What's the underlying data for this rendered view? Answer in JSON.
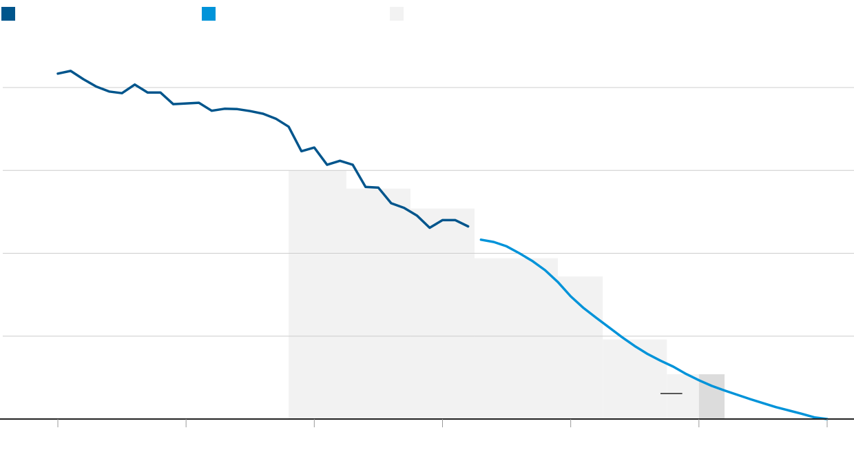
{
  "colors": {
    "historical": "#00558c",
    "projected": "#0093d9",
    "band": "#f2f2f2",
    "band_highlight": "#dcdcdc",
    "grid": "#cccccc",
    "axis": "#222222"
  },
  "chart_data": {
    "type": "line",
    "title": "",
    "xlabel": "",
    "ylabel": "",
    "grid": true,
    "legend_position": "top-left",
    "xlim": [
      1990,
      2050
    ],
    "ylim": [
      0,
      100
    ],
    "x_ticks": [
      1990,
      2000,
      2010,
      2020,
      2030,
      2040,
      2050
    ],
    "y_ticks": [
      0,
      25,
      50,
      75,
      100
    ],
    "legend": [
      {
        "key": "historical",
        "label": "",
        "color": "#00558c"
      },
      {
        "key": "projected",
        "label": "",
        "color": "#0093d9"
      },
      {
        "key": "band",
        "label": "",
        "color": "#f2f2f2"
      }
    ],
    "series": [
      {
        "key": "historical",
        "color": "#00558c",
        "x": [
          1990,
          1991,
          1992,
          1993,
          1994,
          1995,
          1996,
          1997,
          1998,
          1999,
          2000,
          2001,
          2002,
          2003,
          2004,
          2005,
          2006,
          2007,
          2008,
          2009,
          2010,
          2011,
          2012,
          2013,
          2014,
          2015,
          2016,
          2017,
          2018,
          2019,
          2020,
          2021,
          2022,
          2023
        ],
        "y": [
          104.2,
          105.0,
          102.5,
          100.3,
          98.8,
          98.3,
          100.9,
          98.5,
          98.5,
          95.0,
          95.2,
          95.4,
          93.0,
          93.6,
          93.5,
          92.9,
          92.1,
          90.6,
          88.2,
          80.8,
          81.9,
          76.7,
          77.9,
          76.7,
          70.0,
          69.8,
          65.1,
          63.7,
          61.4,
          57.7,
          60.0,
          60.0,
          58.1,
          null
        ]
      },
      {
        "key": "projected",
        "color": "#0093d9",
        "x": [
          2023,
          2024,
          2025,
          2026,
          2027,
          2028,
          2029,
          2030,
          2031,
          2032,
          2033,
          2034,
          2035,
          2036,
          2037,
          2038,
          2039,
          2040,
          2041,
          2042,
          2043,
          2044,
          2045,
          2046,
          2047,
          2048,
          2049,
          2050
        ],
        "y": [
          54.1,
          53.4,
          52.1,
          50.0,
          47.7,
          44.9,
          41.3,
          37.0,
          33.5,
          30.5,
          27.6,
          24.7,
          22.0,
          19.6,
          17.6,
          15.8,
          13.6,
          11.7,
          10.0,
          8.6,
          7.3,
          6.0,
          4.8,
          3.6,
          2.6,
          1.6,
          0.5,
          0.0
        ]
      }
    ],
    "bands": [
      {
        "x0": 2008.0,
        "x1": 2012.5,
        "y": 75.0,
        "highlight": false
      },
      {
        "x0": 2012.5,
        "x1": 2017.5,
        "y": 69.5,
        "highlight": false
      },
      {
        "x0": 2017.5,
        "x1": 2022.5,
        "y": 63.5,
        "highlight": false
      },
      {
        "x0": 2022.5,
        "x1": 2029.0,
        "y": 48.5,
        "highlight": false
      },
      {
        "x0": 2029.0,
        "x1": 2032.5,
        "y": 43.0,
        "highlight": false
      },
      {
        "x0": 2032.5,
        "x1": 2037.5,
        "y": 24.0,
        "highlight": false
      },
      {
        "x0": 2037.5,
        "x1": 2040.0,
        "y": 13.5,
        "highlight": false
      },
      {
        "x0": 2040.0,
        "x1": 2042.0,
        "y": 13.5,
        "highlight": true
      }
    ],
    "annotation": {
      "type": "marker",
      "x0": 2037.0,
      "x1": 2038.7,
      "y": 7.7
    }
  }
}
